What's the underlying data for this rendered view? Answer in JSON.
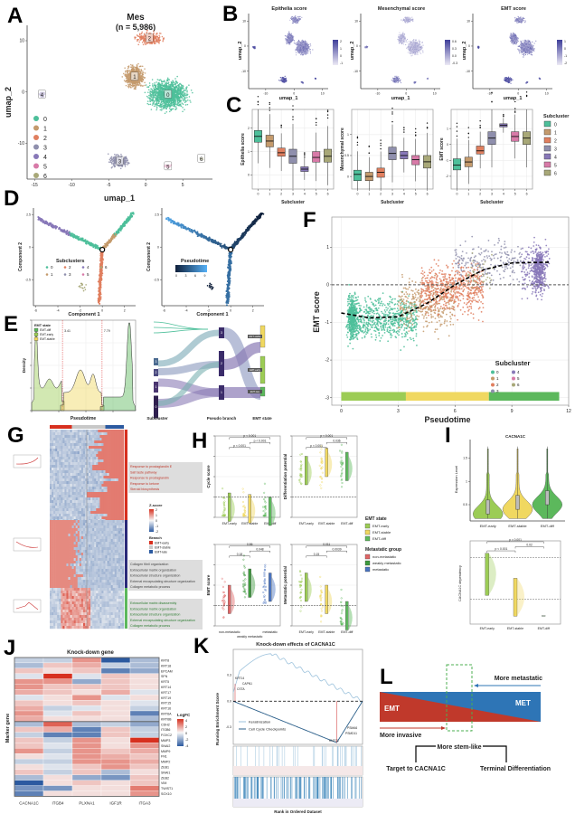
{
  "panel_labels": {
    "A": "A",
    "B": "B",
    "C": "C",
    "D": "D",
    "E": "E",
    "F": "F",
    "G": "G",
    "H": "H",
    "I": "I",
    "J": "J",
    "K": "K",
    "L": "L"
  },
  "colors": {
    "clusters": [
      "#4dbf9a",
      "#c49a6c",
      "#e07f5f",
      "#8f8fad",
      "#8878b8",
      "#d87aa8",
      "#a8a878"
    ],
    "score_low": "#ece9f5",
    "score_high": "#3f3f9a",
    "pseudotime_low": "#0f1f3a",
    "pseudotime_high": "#56b1f7",
    "emt_early": "#9ccc55",
    "emt_stable": "#f0d860",
    "emt_diff": "#5cb85c",
    "non_metastatic": "#e06666",
    "weakly_metastatic": "#3d9a3d",
    "metastatic": "#4a74c0",
    "heat_high": "#d7301f",
    "heat_mid": "#f7f7f7",
    "heat_low": "#2c5aa0",
    "emt": "#c0392b",
    "met": "#2e75b6",
    "dashed_box": "#4caf50"
  },
  "chart_data": [
    {
      "panel": "A",
      "type": "scatter",
      "title": "Mes",
      "subtitle": "(n = 5,986)",
      "xlabel": "umap_1",
      "ylabel": "umap_2",
      "xlim": [
        -16,
        9
      ],
      "ylim": [
        -17,
        13
      ],
      "xticks": [
        -15,
        -10,
        -5,
        0,
        5
      ],
      "yticks": [
        -10,
        0,
        10
      ],
      "legend": [
        "0",
        "1",
        "2",
        "3",
        "4",
        "5",
        "6"
      ],
      "clusters": [
        {
          "label": "0",
          "umap_center": [
            3,
            -0.5
          ]
        },
        {
          "label": "1",
          "umap_center": [
            -1.5,
            3
          ]
        },
        {
          "label": "2",
          "umap_center": [
            0.5,
            10.5
          ]
        },
        {
          "label": "3",
          "umap_center": [
            -3.5,
            -13.5
          ]
        },
        {
          "label": "4",
          "umap_center": [
            -14,
            -0.5
          ]
        },
        {
          "label": "5",
          "umap_center": [
            3,
            -14.5
          ]
        },
        {
          "label": "6",
          "umap_center": [
            7.5,
            -13
          ]
        }
      ]
    },
    {
      "panel": "B",
      "type": "scatter",
      "plots": [
        {
          "title": "Epithelia score",
          "colorbar_ticks": [
            "2",
            "1",
            "0",
            "-1"
          ]
        },
        {
          "title": "Mesenchymal score",
          "colorbar_ticks": [
            "0.6",
            "0.3",
            "0.0",
            "-0.3"
          ]
        },
        {
          "title": "EMT score",
          "colorbar_ticks": [
            "1",
            "0",
            "-1",
            "-2"
          ]
        }
      ],
      "xlabel": "umap_1",
      "ylabel": "umap_2",
      "xticks": [
        -10,
        0,
        10
      ],
      "yticks": [
        10,
        0,
        -10
      ]
    },
    {
      "panel": "C",
      "type": "box",
      "categories": [
        "0",
        "1",
        "2",
        "3",
        "4",
        "5",
        "6"
      ],
      "xlabel": "Subcluster",
      "legend_title": "Subcluster",
      "plots": [
        {
          "ylabel": "Epithelia score",
          "ylim": [
            -0.6,
            2.8
          ],
          "yticks": [
            0,
            1,
            2
          ],
          "medians": [
            1.65,
            1.45,
            0.95,
            0.8,
            0.25,
            0.75,
            0.8
          ],
          "q1": [
            1.4,
            1.2,
            0.8,
            0.5,
            0.15,
            0.55,
            0.55
          ],
          "q3": [
            1.9,
            1.7,
            1.15,
            1.1,
            0.35,
            1.0,
            1.1
          ]
        },
        {
          "ylabel": "Mesenchymal score",
          "ylim": [
            -0.3,
            1.6
          ],
          "yticks": [
            0.0,
            0.5,
            1.0
          ],
          "medians": [
            0.05,
            0.0,
            0.1,
            0.55,
            0.5,
            0.4,
            0.35
          ],
          "q1": [
            -0.1,
            -0.1,
            -0.02,
            0.4,
            0.42,
            0.28,
            0.2
          ],
          "q3": [
            0.15,
            0.1,
            0.2,
            0.7,
            0.6,
            0.5,
            0.5
          ]
        },
        {
          "ylabel": "EMT score",
          "ylim": [
            -2.8,
            2.2
          ],
          "yticks": [
            -2,
            -1,
            0,
            1
          ],
          "medians": [
            -1.3,
            -1.1,
            -0.4,
            0.4,
            1.2,
            0.5,
            0.4
          ],
          "q1": [
            -1.6,
            -1.4,
            -0.6,
            0.0,
            1.1,
            0.2,
            0.0
          ],
          "q3": [
            -0.9,
            -0.8,
            -0.1,
            0.8,
            1.3,
            0.8,
            0.8
          ]
        }
      ]
    },
    {
      "panel": "D",
      "type": "scatter",
      "xlabel": "Component 1",
      "ylabel": "Component 2",
      "xticks": [
        -6,
        -4,
        -2,
        0,
        2
      ],
      "yticks": [
        2.5,
        0.0,
        -2.5
      ],
      "legend_title": "Subclusters",
      "legend": [
        "0",
        "1",
        "2",
        "3",
        "4",
        "5",
        "6"
      ],
      "colorbar_title": "Pseudotime",
      "colorbar_ticks": [
        0,
        3,
        6,
        9
      ]
    },
    {
      "panel": "E",
      "type": "area",
      "xlabel": "Pseudotime",
      "ylabel": "Density",
      "legend_title": "EMT state",
      "legend": [
        "EMT-diff",
        "EMT-early",
        "EMT-stable"
      ],
      "cutoffs": [
        3.41,
        7.79
      ],
      "cutoff_labels": [
        "3.41",
        "7.79"
      ],
      "sankey": {
        "axis_labels": [
          "Subcluster",
          "Pseudo branch",
          "EMT state"
        ],
        "subclusters": [
          "0",
          "1",
          "2",
          "3"
        ],
        "branches": [
          "3",
          "2",
          "1"
        ],
        "states": [
          "EMT-stable",
          "EMT-early",
          "EMT-late"
        ]
      }
    },
    {
      "panel": "F",
      "type": "scatter",
      "xlabel": "Pseudotime",
      "ylabel": "EMT score",
      "xlim": [
        -0.5,
        12
      ],
      "ylim": [
        -3.2,
        1.8
      ],
      "xticks": [
        0,
        3,
        6,
        9,
        12
      ],
      "yticks": [
        -3,
        -2,
        -1,
        0,
        1
      ],
      "legend_title": "Subcluster",
      "legend": [
        "0",
        "1",
        "2",
        "3",
        "4",
        "5",
        "6"
      ],
      "trend": {
        "x": [
          0,
          1.5,
          3,
          4.5,
          6,
          7.5,
          9,
          11
        ],
        "y": [
          -0.75,
          -0.88,
          -0.85,
          -0.5,
          0.0,
          0.4,
          0.58,
          0.6
        ]
      },
      "state_bar": [
        {
          "state": "EMT-early",
          "from": 0,
          "to": 3.41
        },
        {
          "state": "EMT-stable",
          "from": 3.41,
          "to": 7.79
        },
        {
          "state": "EMT-diff",
          "from": 7.79,
          "to": 11.5
        }
      ]
    },
    {
      "panel": "G",
      "type": "heatmap",
      "zscore_title": "Z-score",
      "zscore_ticks": [
        "2",
        "1",
        "0",
        "-1",
        "-2"
      ],
      "branch_title": "Branch",
      "branches": [
        "EMT-early",
        "EMT-stable",
        "EMT-late"
      ],
      "clusters": [
        {
          "terms": [
            "Response to prostaglandin E",
            "Salt taste pathway",
            "Response to prostaglandin",
            "Response to ketone",
            "Steroid biosynthesis"
          ]
        },
        {
          "terms": [
            "Collagen fibril organization",
            "Extracellular matrix organization",
            "Extracellular structure organization",
            "External encapsulating structure organization",
            "Collagen metabolic process"
          ]
        },
        {
          "terms": [
            "Extracellular matrix disassembly",
            "Extracellular matrix organization",
            "Extracellular structure organization",
            "External encapsulating structure organization",
            "Collagen metabolic process"
          ]
        }
      ]
    },
    {
      "panel": "H",
      "type": "box",
      "plots": [
        {
          "ylabel": "Cycle score",
          "categories": [
            "EMT-early",
            "EMT-stable",
            "EMT-diff"
          ],
          "medians": [
            0.1,
            0.08,
            0.05
          ],
          "pvalues": [
            "p < 0.001",
            "p < 0.001",
            "p < 0.001"
          ]
        },
        {
          "ylabel": "Differentiation potential",
          "categories": [
            "EMT-early",
            "EMT-stable",
            "EMT-diff"
          ],
          "medians": [
            0.55,
            0.65,
            0.6
          ],
          "pvalues": [
            "p < 0.001",
            "p < 0.001",
            "0.036"
          ]
        },
        {
          "ylabel": "EMT score",
          "categories": [
            "non-metastatic",
            "weakly metastatic",
            "metastatic"
          ],
          "medians": [
            0.3,
            0.5,
            0.45
          ],
          "pvalues": [
            "0.56",
            "0.18",
            "0.048"
          ]
        },
        {
          "ylabel": "Metastatic potential",
          "categories": [
            "EMT-early",
            "EMT-stable",
            "EMT-diff"
          ],
          "medians": [
            0.45,
            0.3,
            0.1
          ],
          "pvalues": [
            "0.011",
            "0.15",
            "0.0039"
          ]
        }
      ],
      "legend_emt_title": "EMT state",
      "legend_emt": [
        "EMT-early",
        "EMT-stable",
        "EMT-diff"
      ],
      "legend_met_title": "Metastatic group",
      "legend_met": [
        "non-metastatic",
        "weakly metastatic",
        "metastatic"
      ]
    },
    {
      "panel": "I",
      "type": "violin",
      "title": "CACNA1C",
      "ylabel": "Expression Level",
      "yticks": [
        0.5,
        1.0,
        1.5
      ],
      "categories": [
        "EMT-early",
        "EMT-stable",
        "EMT-diff"
      ],
      "medians": [
        0.4,
        0.5,
        0.6
      ],
      "lower": {
        "ylabel": "CACNA1C dependency",
        "categories": [
          "EMT-early",
          "EMT-stable",
          "EMT-diff"
        ],
        "pvalues": [
          "p < 0.001",
          "p < 0.001",
          "0.02"
        ]
      }
    },
    {
      "panel": "J",
      "type": "heatmap",
      "title": "Knock-down gene",
      "ylabel": "Marker gene",
      "legend_title": "LogFC",
      "legend_ticks": [
        "4",
        "2",
        "0",
        "-2",
        "-4"
      ],
      "columns": [
        "CACNA1C",
        "ITGB4",
        "PLXNA1",
        "IGF1R",
        "ITGA3"
      ],
      "rows": [
        "KRT8",
        "KRT18",
        "EPCAM",
        "SFN",
        "KRT5",
        "KRT14",
        "KRT17",
        "KRT19",
        "KRT15",
        "KRT16",
        "KRT6A",
        "KRT6B",
        "CDH2",
        "ITGB6",
        "FOXC2",
        "MMP3",
        "SNAI2",
        "MMP9",
        "FN1",
        "MMP2",
        "ZEB1",
        "SNAI1",
        "ZEB2",
        "VIM",
        "TWIST1",
        "SOX10"
      ],
      "values": [
        [
          -1,
          -1,
          2,
          -4,
          -1.5
        ],
        [
          -1.5,
          1,
          1.5,
          -1,
          -1.5
        ],
        [
          1,
          0.5,
          1,
          -3,
          -2
        ],
        [
          -0.5,
          4,
          -0.5,
          1,
          0.5
        ],
        [
          2,
          2,
          -2,
          1,
          0.5
        ],
        [
          2,
          1,
          1,
          1,
          0.5
        ],
        [
          1.5,
          1,
          0.5,
          1.5,
          -0.5
        ],
        [
          -0.5,
          0.5,
          2,
          -0.5,
          0.5
        ],
        [
          1,
          0.5,
          1,
          0.5,
          -0.5
        ],
        [
          1.5,
          -1,
          -0.5,
          0.5,
          -1
        ],
        [
          2,
          -0.5,
          1,
          0.5,
          -3
        ],
        [
          1.5,
          0.5,
          0.5,
          0.5,
          -1.5
        ],
        [
          -1.5,
          3,
          -1.5,
          -1,
          -2
        ],
        [
          1,
          1.5,
          -3,
          1,
          -1
        ],
        [
          -1,
          -3,
          -3,
          1,
          -1
        ],
        [
          1,
          -1,
          2,
          0.5,
          4
        ],
        [
          1,
          -0.5,
          2,
          0.5,
          2
        ],
        [
          2,
          -1,
          2,
          1,
          1.5
        ],
        [
          0.5,
          -0.5,
          2,
          1.5,
          1
        ],
        [
          -1,
          -1,
          2,
          2,
          1.5
        ],
        [
          0.5,
          -0.5,
          1,
          2,
          1
        ],
        [
          1,
          -1,
          1,
          -1.5,
          0.5
        ],
        [
          -1.5,
          0.5,
          -2,
          -2.5,
          1
        ],
        [
          -4,
          0.5,
          1,
          0.5,
          1
        ],
        [
          -2.5,
          -2.5,
          0.5,
          0.5,
          2.5
        ],
        [
          -3,
          0.5,
          0.5,
          0.5,
          2
        ]
      ]
    },
    {
      "panel": "K",
      "type": "line",
      "title": "Knock-down effects of CACNA1C",
      "ylabel": "Running Enrichment Score",
      "xlabel": "Rank in Ordered Dataset",
      "yticks": [
        "0.3",
        "0.0",
        "-0.3"
      ],
      "series": [
        {
          "name": "Keratinization",
          "color": "#9ec3dd"
        },
        {
          "name": "Cell Cycle Checkpoints",
          "color": "#2b5f8a"
        }
      ],
      "gene_labels": [
        "KRT14",
        "CAPN1",
        "CSTA",
        "PSMA6",
        "PSMD11",
        "KNTC1"
      ]
    }
  ],
  "panel_L": {
    "more_metastatic": "More metastatic",
    "emt": "EMT",
    "met": "MET",
    "more_invasive": "More invasive",
    "more_stem_like": "More stem-like",
    "target": "Target to CACNA1C",
    "terminal": "Terminal Differentiation"
  }
}
